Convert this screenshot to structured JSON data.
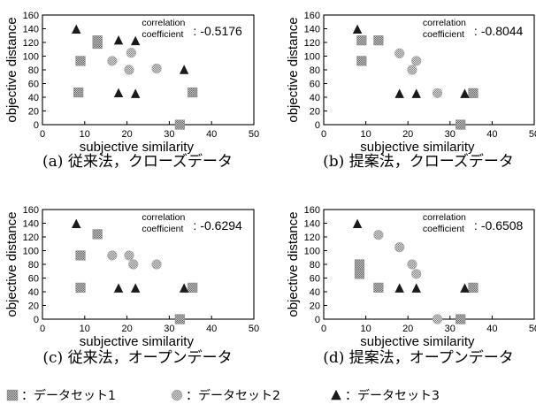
{
  "chart_data": [
    {
      "type": "scatter",
      "caption": "(a) 従来法，クローズデータ",
      "xlabel": "subjective similarity",
      "ylabel": "objective distance",
      "xlim": [
        0,
        50
      ],
      "ylim": [
        0,
        160
      ],
      "xticks": [
        "0",
        "10",
        "20",
        "30",
        "40",
        "50"
      ],
      "yticks": [
        "0",
        "20",
        "40",
        "60",
        "80",
        "100",
        "120",
        "140",
        "160"
      ],
      "annotation": {
        "line1": "correlation",
        "line2": "coefficient",
        "value": "-0.5176"
      },
      "series": [
        {
          "key": "ds1",
          "points": [
            [
              8.5,
              47
            ],
            [
              9,
              93
            ],
            [
              13,
              118
            ],
            [
              13,
              123
            ],
            [
              32.5,
              0
            ],
            [
              35.5,
              47
            ]
          ]
        },
        {
          "key": "ds2",
          "points": [
            [
              16.5,
              93
            ],
            [
              20.5,
              80
            ],
            [
              21,
              105
            ],
            [
              27,
              82
            ]
          ]
        },
        {
          "key": "ds3",
          "points": [
            [
              8,
              139
            ],
            [
              18,
              123
            ],
            [
              22,
              122
            ],
            [
              18,
              46
            ],
            [
              22,
              45
            ],
            [
              33.5,
              80
            ]
          ]
        }
      ]
    },
    {
      "type": "scatter",
      "caption": "(b) 提案法，クローズデータ",
      "xlabel": "subjective similarity",
      "ylabel": "objective distance",
      "xlim": [
        0,
        50
      ],
      "ylim": [
        0,
        160
      ],
      "xticks": [
        "0",
        "10",
        "20",
        "30",
        "40",
        "50"
      ],
      "yticks": [
        "0",
        "20",
        "40",
        "60",
        "80",
        "100",
        "120",
        "140",
        "160"
      ],
      "annotation": {
        "line1": "correlation",
        "line2": "coefficient",
        "value": "-0.8044"
      },
      "series": [
        {
          "key": "ds1",
          "points": [
            [
              9,
              123
            ],
            [
              9,
              93
            ],
            [
              13,
              123
            ],
            [
              32.5,
              0
            ],
            [
              35.5,
              46
            ]
          ]
        },
        {
          "key": "ds2",
          "points": [
            [
              18,
              104
            ],
            [
              21,
              80
            ],
            [
              22,
              93
            ],
            [
              27,
              46
            ]
          ]
        },
        {
          "key": "ds3",
          "points": [
            [
              8,
              139
            ],
            [
              18,
              45
            ],
            [
              22,
              45
            ],
            [
              33.5,
              45
            ]
          ]
        }
      ]
    },
    {
      "type": "scatter",
      "caption": "(c) 従来法，オープンデータ",
      "xlabel": "subjective similarity",
      "ylabel": "objective distance",
      "xlim": [
        0,
        50
      ],
      "ylim": [
        0,
        160
      ],
      "xticks": [
        "0",
        "10",
        "20",
        "30",
        "40",
        "50"
      ],
      "yticks": [
        "0",
        "20",
        "40",
        "60",
        "80",
        "100",
        "120",
        "140",
        "160"
      ],
      "annotation": {
        "line1": "correlation",
        "line2": "coefficient",
        "value": "-0.6294"
      },
      "series": [
        {
          "key": "ds1",
          "points": [
            [
              9,
              93
            ],
            [
              9,
              46
            ],
            [
              13,
              124
            ],
            [
              32.5,
              0
            ],
            [
              35.5,
              46
            ]
          ]
        },
        {
          "key": "ds2",
          "points": [
            [
              16.5,
              93
            ],
            [
              20.5,
              93
            ],
            [
              21.5,
              80
            ],
            [
              27,
              80
            ]
          ]
        },
        {
          "key": "ds3",
          "points": [
            [
              8,
              139
            ],
            [
              18,
              45
            ],
            [
              22,
              45
            ],
            [
              33.5,
              45
            ]
          ]
        }
      ]
    },
    {
      "type": "scatter",
      "caption": "(d) 提案法，オープンデータ",
      "xlabel": "subjective similarity",
      "ylabel": "objective distance",
      "xlim": [
        0,
        50
      ],
      "ylim": [
        0,
        160
      ],
      "xticks": [
        "0",
        "10",
        "20",
        "30",
        "40",
        "50"
      ],
      "yticks": [
        "0",
        "20",
        "40",
        "60",
        "80",
        "100",
        "120",
        "140",
        "160"
      ],
      "annotation": {
        "line1": "correlation",
        "line2": "coefficient",
        "value": "-0.6508"
      },
      "series": [
        {
          "key": "ds1",
          "points": [
            [
              8.5,
              80
            ],
            [
              8.5,
              66
            ],
            [
              13,
              46
            ],
            [
              32.5,
              0
            ],
            [
              35.5,
              46
            ]
          ]
        },
        {
          "key": "ds2",
          "points": [
            [
              13,
              123
            ],
            [
              18,
              105
            ],
            [
              21,
              80
            ],
            [
              22,
              66
            ],
            [
              27,
              0
            ]
          ]
        },
        {
          "key": "ds3",
          "points": [
            [
              8,
              139
            ],
            [
              18,
              45
            ],
            [
              22,
              45
            ],
            [
              33.5,
              45
            ]
          ]
        }
      ]
    }
  ],
  "legend": [
    {
      "key": "ds1",
      "label": "：データセット1"
    },
    {
      "key": "ds2",
      "label": "：データセット2"
    },
    {
      "key": "ds3",
      "label": "：データセット3"
    }
  ],
  "colors": {
    "ds1": "#8f8f8f",
    "ds2": "#a8a8a8",
    "ds3": "#1a1a1a"
  }
}
